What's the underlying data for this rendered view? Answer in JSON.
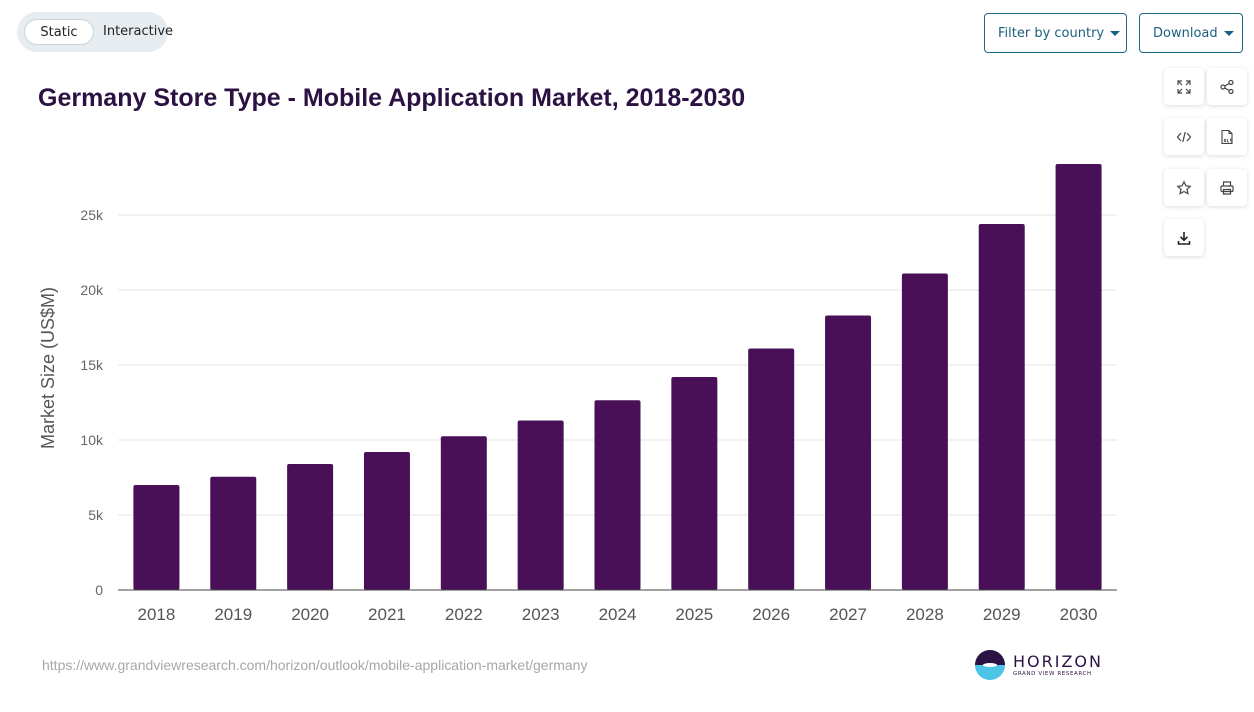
{
  "view_toggle": {
    "static_label": "Static",
    "interactive_label": "Interactive",
    "selected": "Static"
  },
  "header": {
    "filter_label": "Filter by country",
    "download_label": "Download"
  },
  "toolbar": {
    "icons": [
      "expand-icon",
      "share-icon",
      "embed-code-icon",
      "xls-file-icon",
      "star-icon",
      "print-icon",
      "download-icon"
    ]
  },
  "footer": {
    "source_url": "https://www.grandviewresearch.com/horizon/outlook/mobile-application-market/germany",
    "logo_name": "HORIZON",
    "logo_sub": "GRAND VIEW RESEARCH"
  },
  "colors": {
    "bar": "#4a1057",
    "title": "#2c1242",
    "button": "#1c5f7e"
  },
  "chart_data": {
    "type": "bar",
    "title": "Germany Store Type - Mobile Application Market, 2018-2030",
    "xlabel": "",
    "ylabel": "Market Size (US$M)",
    "categories": [
      "2018",
      "2019",
      "2020",
      "2021",
      "2022",
      "2023",
      "2024",
      "2025",
      "2026",
      "2027",
      "2028",
      "2029",
      "2030"
    ],
    "values": [
      7000,
      7550,
      8400,
      9200,
      10250,
      11300,
      12650,
      14200,
      16100,
      18300,
      21100,
      24400,
      28400
    ],
    "yticks": [
      0,
      5000,
      10000,
      15000,
      20000,
      25000
    ],
    "ytick_labels": [
      "0",
      "5k",
      "10k",
      "15k",
      "20k",
      "25k"
    ],
    "ylim": [
      0,
      30000
    ],
    "grid": true,
    "legend": "none"
  }
}
